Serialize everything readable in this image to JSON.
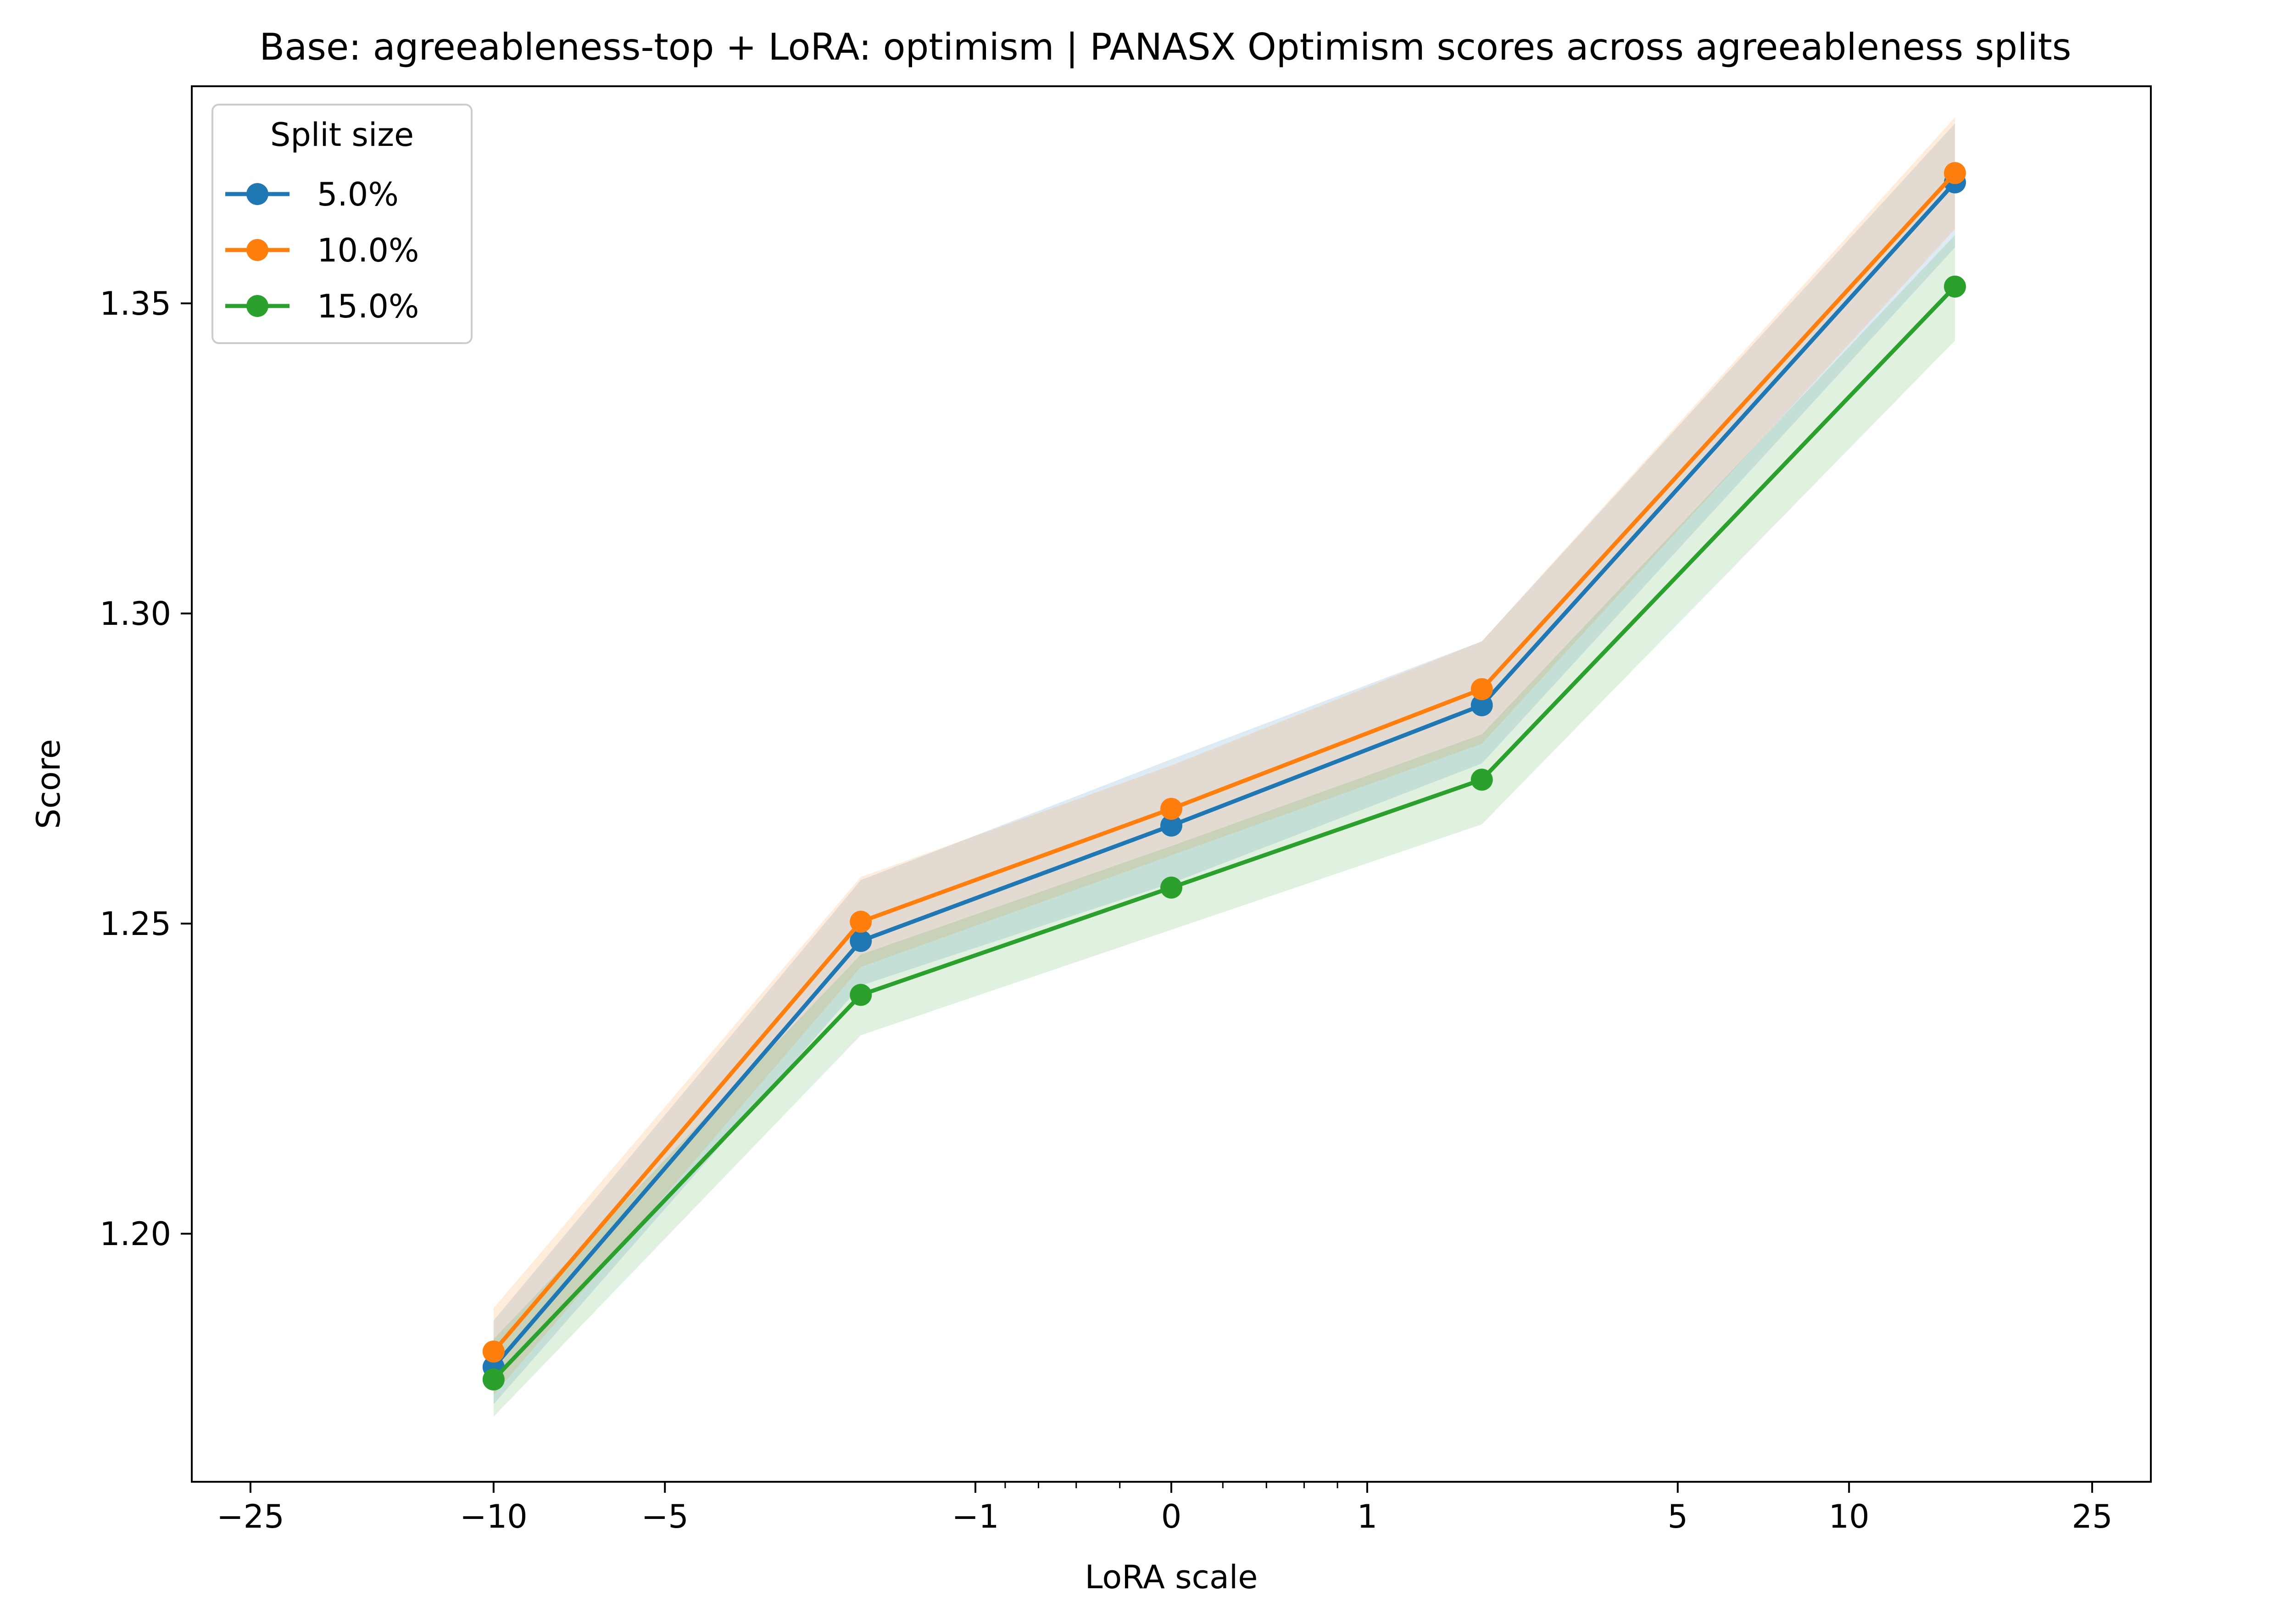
{
  "chart_data": {
    "type": "line",
    "title": "Base: agreeableness-top + LoRA: optimism | PANASX Optimism scores across agreeableness splits",
    "xlabel": "LoRA scale",
    "ylabel": "Score",
    "x_ticks": [
      {
        "label": "−25",
        "value": -25
      },
      {
        "label": "−10",
        "value": -10
      },
      {
        "label": "−5",
        "value": -5
      },
      {
        "label": "−1",
        "value": -1
      },
      {
        "label": "0",
        "value": 0
      },
      {
        "label": "1",
        "value": 1
      },
      {
        "label": "5",
        "value": 5
      },
      {
        "label": "10",
        "value": 10
      },
      {
        "label": "25",
        "value": 25
      }
    ],
    "y_ticks": [
      {
        "label": "1.20",
        "value": 1.2
      },
      {
        "label": "1.25",
        "value": 1.25
      },
      {
        "label": "1.30",
        "value": 1.3
      },
      {
        "label": "1.35",
        "value": 1.35
      }
    ],
    "ylim": [
      1.16,
      1.385
    ],
    "x_scale": "symlog",
    "x": [
      -10,
      -2,
      0,
      2,
      15
    ],
    "series": [
      {
        "name": "5.0%",
        "color": "#1f77b4",
        "values": [
          1.1785,
          1.2472,
          1.2658,
          1.2852,
          1.3695
        ],
        "lower": [
          1.1725,
          1.24,
          1.2565,
          1.2758,
          1.359
        ],
        "upper": [
          1.186,
          1.257,
          1.2765,
          1.2955,
          1.379
        ]
      },
      {
        "name": "10.0%",
        "color": "#ff7f0e",
        "values": [
          1.181,
          1.2503,
          1.2685,
          1.2878,
          1.371
        ],
        "lower": [
          1.174,
          1.243,
          1.261,
          1.279,
          1.362
        ],
        "upper": [
          1.188,
          1.2575,
          1.2755,
          1.2955,
          1.38
        ]
      },
      {
        "name": "15.0%",
        "color": "#2ca02c",
        "values": [
          1.1765,
          1.2385,
          1.2558,
          1.2732,
          1.3527
        ],
        "lower": [
          1.1705,
          1.232,
          1.249,
          1.266,
          1.344
        ],
        "upper": [
          1.183,
          1.245,
          1.2625,
          1.2805,
          1.361
        ]
      }
    ],
    "legend": {
      "title": "Split size",
      "placement": "upper-left"
    },
    "grid": false
  }
}
